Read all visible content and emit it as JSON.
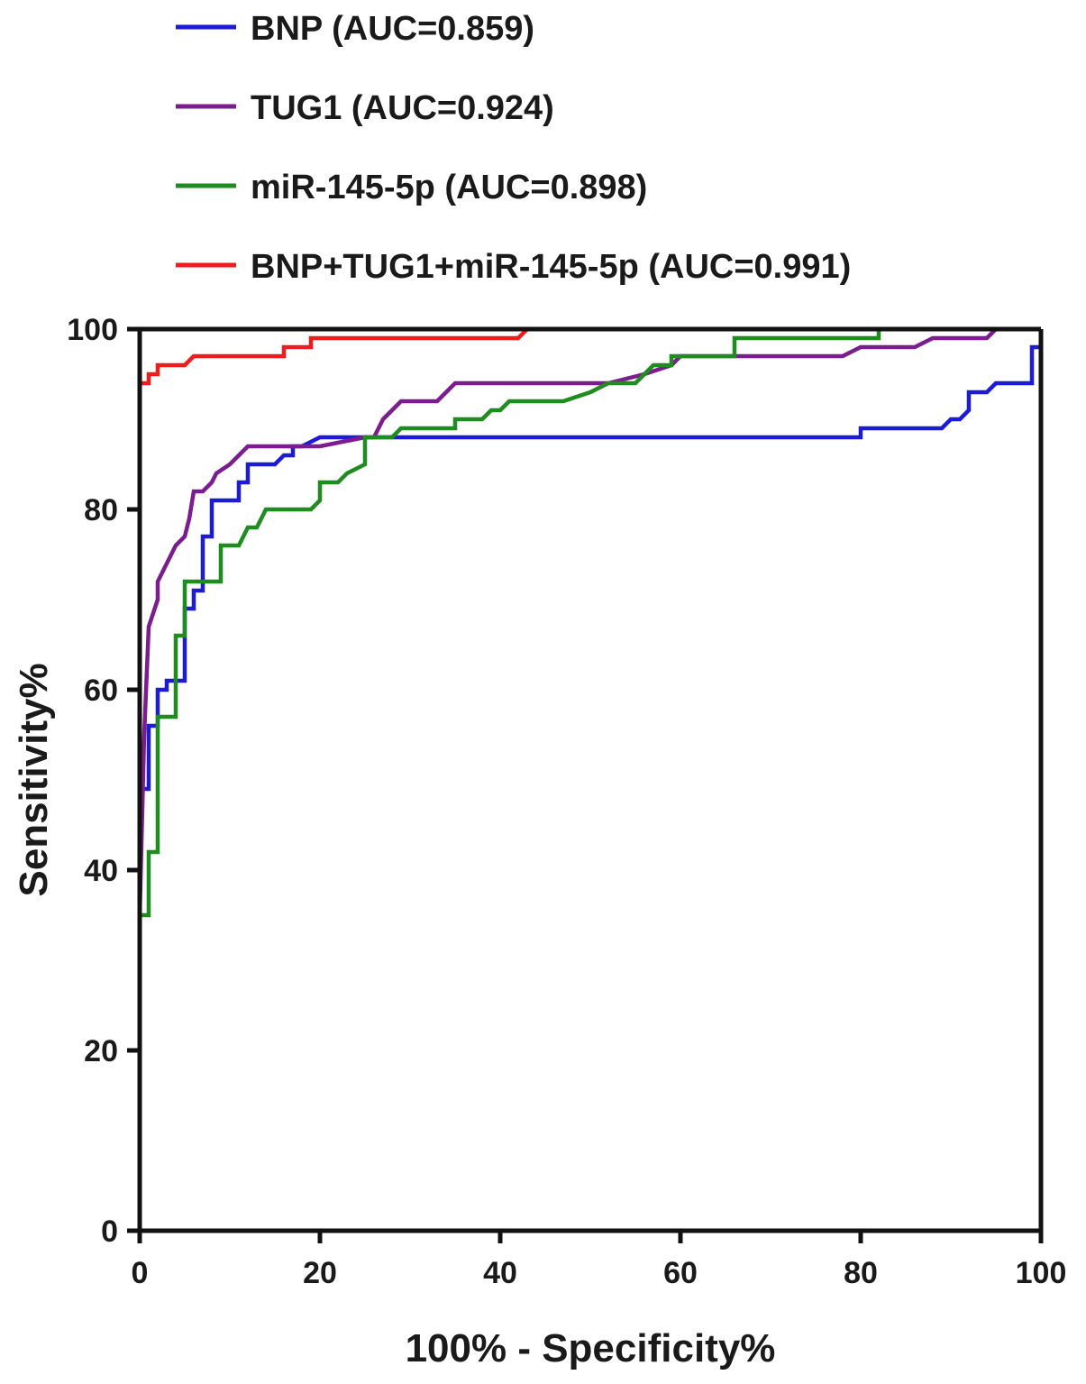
{
  "chart_data": {
    "type": "line",
    "title": "",
    "xlabel": "100% - Specificity%",
    "ylabel": "Sensitivity%",
    "xlim": [
      0,
      100
    ],
    "ylim": [
      0,
      100
    ],
    "x_ticks": [
      "0",
      "20",
      "40",
      "60",
      "80",
      "100"
    ],
    "y_ticks": [
      "0",
      "20",
      "40",
      "60",
      "80",
      "100"
    ],
    "grid": false,
    "legend_position": "top-left",
    "series": [
      {
        "name": "BNP (AUC=0.859)",
        "color": "#1c1cd6",
        "points": [
          [
            0,
            0
          ],
          [
            0,
            49
          ],
          [
            1,
            49
          ],
          [
            1,
            56
          ],
          [
            2,
            56
          ],
          [
            2,
            60
          ],
          [
            3,
            60
          ],
          [
            3,
            61
          ],
          [
            4,
            61
          ],
          [
            4,
            61
          ],
          [
            5,
            61
          ],
          [
            5,
            69
          ],
          [
            6,
            69
          ],
          [
            6,
            71
          ],
          [
            7,
            71
          ],
          [
            7,
            77
          ],
          [
            8,
            77
          ],
          [
            8,
            81
          ],
          [
            10,
            81
          ],
          [
            11,
            81
          ],
          [
            11,
            83
          ],
          [
            12,
            83
          ],
          [
            12,
            85
          ],
          [
            15,
            85
          ],
          [
            16,
            86
          ],
          [
            17,
            86
          ],
          [
            17,
            87
          ],
          [
            18,
            87
          ],
          [
            20,
            88
          ],
          [
            40,
            88
          ],
          [
            60,
            88
          ],
          [
            80,
            88
          ],
          [
            80,
            89
          ],
          [
            89,
            89
          ],
          [
            90,
            90
          ],
          [
            91,
            90
          ],
          [
            92,
            91
          ],
          [
            92,
            93
          ],
          [
            94,
            93
          ],
          [
            95,
            94
          ],
          [
            99,
            94
          ],
          [
            99,
            98
          ],
          [
            100,
            98
          ],
          [
            100,
            100
          ]
        ]
      },
      {
        "name": "TUG1 (AUC=0.924)",
        "color": "#7b1c8f",
        "points": [
          [
            0,
            0
          ],
          [
            0,
            35
          ],
          [
            0.5,
            55
          ],
          [
            1,
            67
          ],
          [
            2,
            70
          ],
          [
            2,
            72
          ],
          [
            3,
            74
          ],
          [
            4,
            76
          ],
          [
            5,
            77
          ],
          [
            5.5,
            79
          ],
          [
            6,
            82
          ],
          [
            7,
            82
          ],
          [
            8,
            83
          ],
          [
            8.5,
            84
          ],
          [
            10,
            85
          ],
          [
            11,
            86
          ],
          [
            12,
            87
          ],
          [
            13,
            87
          ],
          [
            20,
            87
          ],
          [
            25,
            88
          ],
          [
            26,
            88
          ],
          [
            27,
            90
          ],
          [
            29,
            92
          ],
          [
            33,
            92
          ],
          [
            35,
            94
          ],
          [
            52,
            94
          ],
          [
            56,
            95
          ],
          [
            59,
            96
          ],
          [
            60,
            97
          ],
          [
            78,
            97
          ],
          [
            80,
            98
          ],
          [
            86,
            98
          ],
          [
            88,
            99
          ],
          [
            94,
            99
          ],
          [
            95,
            100
          ],
          [
            100,
            100
          ]
        ]
      },
      {
        "name": "miR-145-5p (AUC=0.898)",
        "color": "#1f8c1f",
        "points": [
          [
            0,
            0
          ],
          [
            0,
            35
          ],
          [
            1,
            35
          ],
          [
            1,
            42
          ],
          [
            2,
            42
          ],
          [
            2,
            57
          ],
          [
            3,
            57
          ],
          [
            4,
            57
          ],
          [
            4,
            66
          ],
          [
            5,
            66
          ],
          [
            5,
            72
          ],
          [
            7,
            72
          ],
          [
            9,
            72
          ],
          [
            9,
            76
          ],
          [
            11,
            76
          ],
          [
            12,
            78
          ],
          [
            13,
            78
          ],
          [
            14,
            80
          ],
          [
            19,
            80
          ],
          [
            20,
            81
          ],
          [
            20,
            83
          ],
          [
            22,
            83
          ],
          [
            23,
            84
          ],
          [
            25,
            85
          ],
          [
            25,
            88
          ],
          [
            28,
            88
          ],
          [
            29,
            89
          ],
          [
            35,
            89
          ],
          [
            35,
            90
          ],
          [
            38,
            90
          ],
          [
            39,
            91
          ],
          [
            40,
            91
          ],
          [
            41,
            92
          ],
          [
            47,
            92
          ],
          [
            50,
            93
          ],
          [
            52,
            94
          ],
          [
            55,
            94
          ],
          [
            57,
            96
          ],
          [
            59,
            96
          ],
          [
            59,
            97
          ],
          [
            62,
            97
          ],
          [
            66,
            97
          ],
          [
            66,
            99
          ],
          [
            82,
            99
          ],
          [
            82,
            100
          ],
          [
            100,
            100
          ]
        ]
      },
      {
        "name": "BNP+TUG1+miR-145-5p (AUC=0.991)",
        "color": "#ee1c1c",
        "points": [
          [
            0,
            0
          ],
          [
            0,
            55
          ],
          [
            0,
            94
          ],
          [
            1,
            94
          ],
          [
            1,
            95
          ],
          [
            2,
            95
          ],
          [
            2,
            96
          ],
          [
            5,
            96
          ],
          [
            6,
            97
          ],
          [
            16,
            97
          ],
          [
            16,
            98
          ],
          [
            19,
            98
          ],
          [
            19,
            99
          ],
          [
            20,
            99
          ],
          [
            40,
            99
          ],
          [
            42,
            99
          ],
          [
            43,
            100
          ],
          [
            100,
            100
          ]
        ]
      }
    ]
  }
}
